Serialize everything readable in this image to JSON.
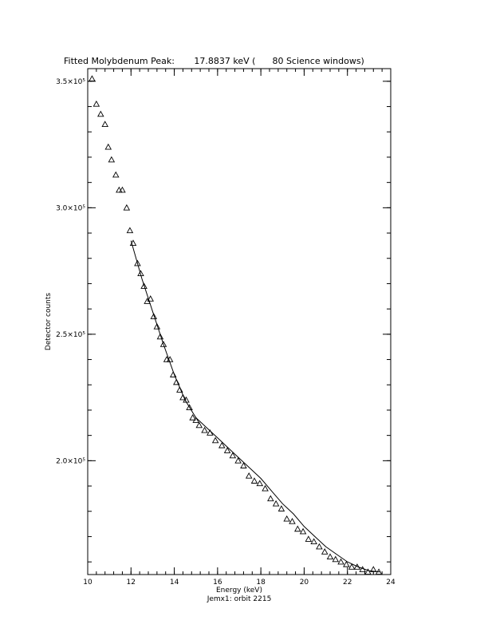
{
  "chart_data": {
    "type": "scatter",
    "title": "Fitted Molybdenum Peak:       17.8837 keV (      80 Science windows)",
    "xlabel": "Energy (keV)",
    "xlabel_sub": "Jemx1: orbit 2215",
    "ylabel": "Detector counts",
    "xlim": [
      10,
      24
    ],
    "ylim": [
      155000,
      355000
    ],
    "x_ticks": [
      10,
      12,
      14,
      16,
      18,
      20,
      22,
      24
    ],
    "x_tick_labels": [
      "10",
      "12",
      "14",
      "16",
      "18",
      "20",
      "22",
      "24"
    ],
    "y_ticks": [
      200000,
      250000,
      300000,
      350000
    ],
    "y_tick_labels": [
      "2.0×10⁵",
      "2.5×10⁵",
      "3.0×10⁵",
      "3.5×10⁵"
    ],
    "grid": false,
    "marker": "triangle",
    "series": [
      {
        "kind": "points",
        "x": [
          10.2,
          10.4,
          10.6,
          10.8,
          10.95,
          11.1,
          11.3,
          11.45,
          11.6,
          11.8,
          11.95,
          12.1,
          12.3,
          12.45,
          12.6,
          12.75,
          12.9,
          13.05,
          13.2,
          13.35,
          13.5,
          13.65,
          13.8,
          13.95,
          14.1,
          14.25,
          14.4,
          14.55,
          14.7,
          14.85,
          15.0,
          15.15,
          15.4,
          15.65,
          15.9,
          16.2,
          16.45,
          16.7,
          16.95,
          17.2,
          17.45,
          17.7,
          17.95,
          18.2,
          18.45,
          18.7,
          18.95,
          19.2,
          19.45,
          19.7,
          19.95,
          20.2,
          20.45,
          20.7,
          20.95,
          21.2,
          21.45,
          21.7,
          21.95,
          22.2,
          22.45,
          22.7,
          22.95,
          23.2,
          23.45
        ],
        "y": [
          351000,
          341000,
          337000,
          333000,
          324000,
          319000,
          313000,
          307000,
          307000,
          300000,
          291000,
          286000,
          278000,
          274000,
          269000,
          263000,
          264000,
          257000,
          253000,
          249000,
          246000,
          240000,
          240000,
          234000,
          231000,
          228000,
          225000,
          224000,
          221000,
          217000,
          216000,
          214000,
          212000,
          211000,
          208000,
          206000,
          204000,
          202000,
          200000,
          198000,
          194000,
          192000,
          191000,
          189000,
          185000,
          183000,
          181000,
          177000,
          176000,
          173000,
          172000,
          169000,
          168000,
          166000,
          164000,
          162000,
          161000,
          160000,
          159000,
          158000,
          158000,
          157000,
          156000,
          157000,
          156000
        ]
      },
      {
        "kind": "fit",
        "x": [
          12.0,
          12.5,
          13.0,
          13.5,
          14.0,
          14.5,
          15.0,
          15.5,
          16.0,
          16.5,
          17.0,
          17.5,
          18.0,
          18.5,
          19.0,
          19.5,
          20.0,
          20.5,
          21.0,
          21.5,
          22.0,
          22.5,
          23.0,
          23.5
        ],
        "y": [
          287000,
          272000,
          259000,
          246000,
          234000,
          224000,
          217000,
          213000,
          209000,
          205000,
          201000,
          197000,
          193000,
          188000,
          183000,
          179000,
          174000,
          170000,
          166000,
          163000,
          160000,
          158000,
          156500,
          156000
        ]
      }
    ]
  }
}
